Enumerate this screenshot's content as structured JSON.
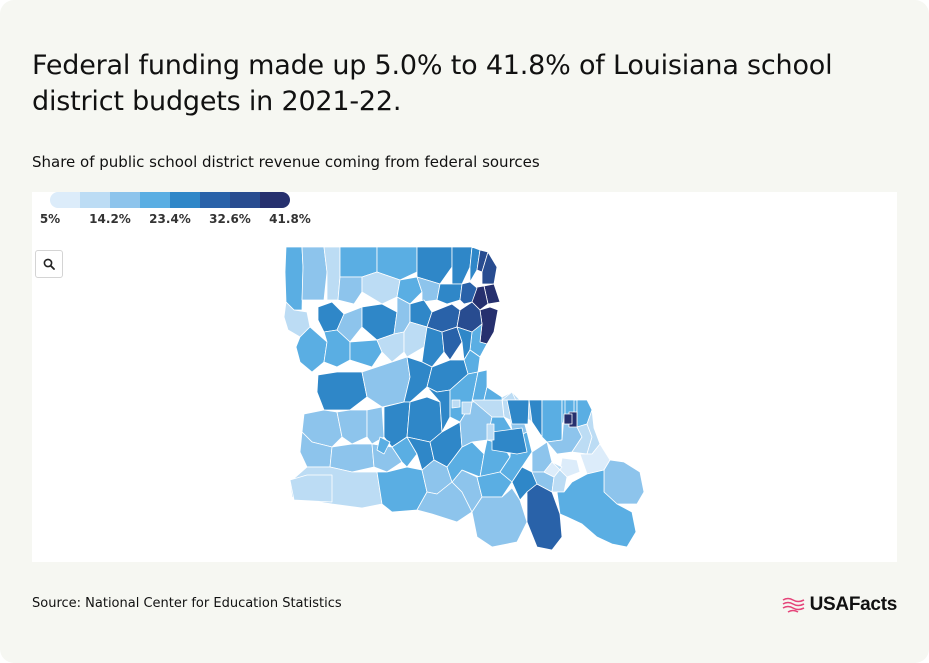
{
  "title": "Federal funding made up 5.0% to 41.8% of Louisiana school district budgets in 2021-22.",
  "subtitle": "Share of public school district revenue coming from federal sources",
  "legend": {
    "colors": [
      "#dcecfa",
      "#bcdcf4",
      "#8dc4ec",
      "#5aaee3",
      "#2f87c8",
      "#2962a9",
      "#284c90",
      "#26306e"
    ],
    "labels": [
      "5%",
      "14.2%",
      "23.4%",
      "32.6%",
      "41.8%"
    ]
  },
  "zoom": {
    "icon": "search-icon"
  },
  "map": {
    "state": "Louisiana",
    "value_range": [
      5.0,
      41.8
    ],
    "scale": "8-step sequential blue"
  },
  "source": "Source: National Center for Education Statistics",
  "logo": {
    "text": "USAFacts",
    "icon": "flag-icon",
    "color": "#e5457a"
  }
}
